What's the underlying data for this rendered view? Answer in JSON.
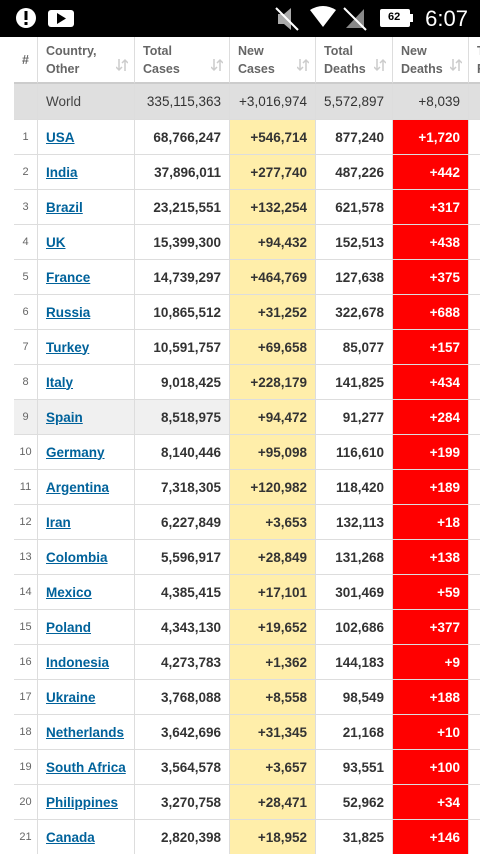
{
  "status_bar": {
    "battery": "62",
    "time": "6:07"
  },
  "table": {
    "headers": [
      [
        "#"
      ],
      [
        "Country,",
        "Other"
      ],
      [
        "Total",
        "Cases"
      ],
      [
        "New",
        "Cases"
      ],
      [
        "Total",
        "Deaths"
      ],
      [
        "New",
        "Deaths"
      ],
      [
        "T",
        "F"
      ]
    ],
    "world": [
      "World",
      "335,115,363",
      "+3,016,974",
      "5,572,897",
      "+8,039"
    ],
    "rows": [
      [
        "1",
        "USA",
        "68,766,247",
        "+546,714",
        "877,240",
        "+1,720"
      ],
      [
        "2",
        "India",
        "37,896,011",
        "+277,740",
        "487,226",
        "+442"
      ],
      [
        "3",
        "Brazil",
        "23,215,551",
        "+132,254",
        "621,578",
        "+317"
      ],
      [
        "4",
        "UK",
        "15,399,300",
        "+94,432",
        "152,513",
        "+438"
      ],
      [
        "5",
        "France",
        "14,739,297",
        "+464,769",
        "127,638",
        "+375"
      ],
      [
        "6",
        "Russia",
        "10,865,512",
        "+31,252",
        "322,678",
        "+688"
      ],
      [
        "7",
        "Turkey",
        "10,591,757",
        "+69,658",
        "85,077",
        "+157"
      ],
      [
        "8",
        "Italy",
        "9,018,425",
        "+228,179",
        "141,825",
        "+434"
      ],
      [
        "9",
        "Spain",
        "8,518,975",
        "+94,472",
        "91,277",
        "+284"
      ],
      [
        "10",
        "Germany",
        "8,140,446",
        "+95,098",
        "116,610",
        "+199"
      ],
      [
        "11",
        "Argentina",
        "7,318,305",
        "+120,982",
        "118,420",
        "+189"
      ],
      [
        "12",
        "Iran",
        "6,227,849",
        "+3,653",
        "132,113",
        "+18"
      ],
      [
        "13",
        "Colombia",
        "5,596,917",
        "+28,849",
        "131,268",
        "+138"
      ],
      [
        "14",
        "Mexico",
        "4,385,415",
        "+17,101",
        "301,469",
        "+59"
      ],
      [
        "15",
        "Poland",
        "4,343,130",
        "+19,652",
        "102,686",
        "+377"
      ],
      [
        "16",
        "Indonesia",
        "4,273,783",
        "+1,362",
        "144,183",
        "+9"
      ],
      [
        "17",
        "Ukraine",
        "3,768,088",
        "+8,558",
        "98,549",
        "+188"
      ],
      [
        "18",
        "Netherlands",
        "3,642,696",
        "+31,345",
        "21,168",
        "+10"
      ],
      [
        "19",
        "South Africa",
        "3,564,578",
        "+3,657",
        "93,551",
        "+100"
      ],
      [
        "20",
        "Philippines",
        "3,270,758",
        "+28,471",
        "52,962",
        "+34"
      ],
      [
        "21",
        "Canada",
        "2,820,398",
        "+18,952",
        "31,825",
        "+146"
      ]
    ]
  }
}
